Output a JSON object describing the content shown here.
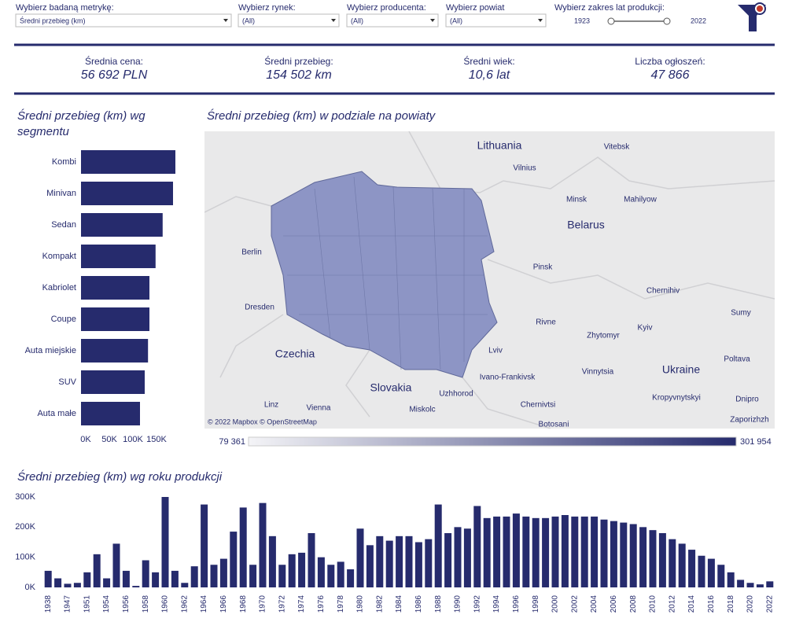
{
  "filters": [
    {
      "label": "Wybierz badaną metrykę:",
      "value": "Średni przebieg (km)"
    },
    {
      "label": "Wybierz rynek:",
      "value": "(All)"
    },
    {
      "label": "Wybierz producenta:",
      "value": "(All)"
    },
    {
      "label": "Wybierz powiat",
      "value": "(All)"
    }
  ],
  "range_filter": {
    "label": "Wybierz zakres lat produkcji:",
    "min": 1923,
    "max": 2022
  },
  "kpis": [
    {
      "label": "Średnia cena:",
      "value": "56 692 PLN"
    },
    {
      "label": "Średni przebieg:",
      "value": "154 502 km"
    },
    {
      "label": "Średni wiek:",
      "value": "10,6 lat"
    },
    {
      "label": "Liczba ogłoszeń:",
      "value": "47 866"
    }
  ],
  "chart_data": [
    {
      "type": "bar",
      "orientation": "horizontal",
      "title": "Średni przebieg (km) wg segmentu",
      "categories": [
        "Kombi",
        "Minivan",
        "Sedan",
        "Kompakt",
        "Kabriolet",
        "Coupe",
        "Auta miejskie",
        "SUV",
        "Auta małe"
      ],
      "values": [
        200000,
        195000,
        173000,
        158000,
        145000,
        145000,
        142000,
        135000,
        125000
      ],
      "color": "#262b6d",
      "xlim": [
        0,
        205000
      ],
      "xticks": [
        {
          "value": 0,
          "label": "0K"
        },
        {
          "value": 50000,
          "label": "50K"
        },
        {
          "value": 100000,
          "label": "100K"
        },
        {
          "value": 150000,
          "label": "150K"
        }
      ]
    },
    {
      "type": "choropleth",
      "title": "Średni przebieg (km) w podziale na powiaty",
      "places": [
        "Lithuania",
        "Vilnius",
        "Vitebsk",
        "Minsk",
        "Mahilyow",
        "Belarus",
        "Berlin",
        "Pinsk",
        "Dresden",
        "Chernihiv",
        "Czechia",
        "Rivne",
        "Zhytomyr",
        "Kyiv",
        "Sumy",
        "Lviv",
        "Poltava",
        "Ukraine",
        "Ivano-Frankivsk",
        "Vinnytsia",
        "Slovakia",
        "Uzhhorod",
        "Kropyvnytskyi",
        "Dnipro",
        "Chernivtsi",
        "Linz",
        "Vienna",
        "Miskolc",
        "Botosani",
        "Zaporizhzh"
      ],
      "attribution": "© 2022 Mapbox © OpenStreetMap",
      "color_low": "#f4f4f7",
      "color_high": "#262b6d",
      "color_ticks": [
        {
          "value": 79361,
          "label": "79 361"
        },
        {
          "value": 301954,
          "label": "301 954"
        }
      ]
    },
    {
      "type": "bar",
      "orientation": "vertical",
      "title": "Średni przebieg (km) wg roku produkcji",
      "categories": [
        "1938",
        null,
        "1947",
        null,
        "1951",
        null,
        "1954",
        null,
        "1956",
        null,
        "1958",
        null,
        "1960",
        null,
        "1962",
        null,
        "1964",
        null,
        "1966",
        null,
        "1968",
        null,
        "1970",
        null,
        "1972",
        null,
        "1974",
        null,
        "1976",
        null,
        "1978",
        null,
        "1980",
        null,
        "1982",
        null,
        "1984",
        null,
        "1986",
        null,
        "1988",
        null,
        "1990",
        null,
        "1992",
        null,
        "1994",
        null,
        "1996",
        null,
        "1998",
        null,
        "2000",
        null,
        "2002",
        null,
        "2004",
        null,
        "2006",
        null,
        "2008",
        null,
        "2010",
        null,
        "2012",
        null,
        "2014",
        null,
        "2016",
        null,
        "2018",
        null,
        "2020",
        null,
        "2022"
      ],
      "values": [
        55000,
        30000,
        12000,
        15000,
        50000,
        110000,
        30000,
        145000,
        55000,
        5000,
        90000,
        50000,
        300000,
        55000,
        15000,
        70000,
        275000,
        75000,
        95000,
        185000,
        265000,
        75000,
        280000,
        170000,
        75000,
        110000,
        115000,
        180000,
        100000,
        75000,
        85000,
        60000,
        195000,
        140000,
        170000,
        155000,
        170000,
        170000,
        150000,
        160000,
        275000,
        180000,
        200000,
        195000,
        270000,
        230000,
        235000,
        235000,
        245000,
        235000,
        230000,
        230000,
        235000,
        240000,
        235000,
        235000,
        235000,
        225000,
        220000,
        215000,
        210000,
        200000,
        190000,
        180000,
        160000,
        145000,
        125000,
        105000,
        95000,
        75000,
        50000,
        25000,
        15000,
        10000,
        20000
      ],
      "color": "#262b6d",
      "ylim": [
        0,
        300000
      ],
      "yticks": [
        {
          "value": 0,
          "label": "0K"
        },
        {
          "value": 100000,
          "label": "100K"
        },
        {
          "value": 200000,
          "label": "200K"
        },
        {
          "value": 300000,
          "label": "300K"
        }
      ]
    }
  ]
}
